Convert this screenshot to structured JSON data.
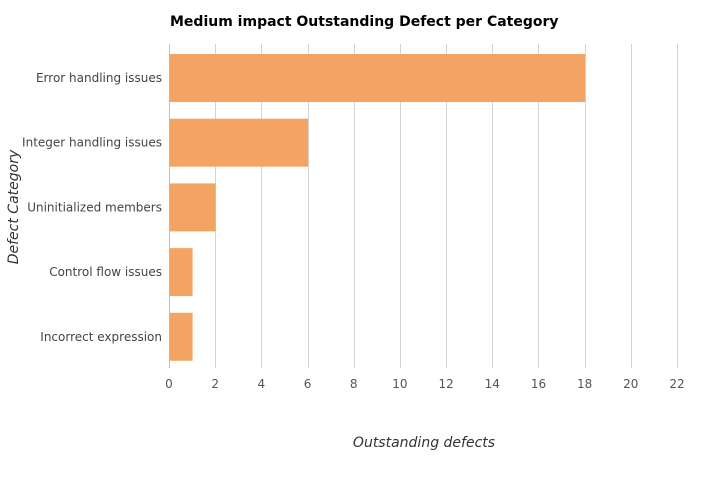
{
  "chart_data": {
    "type": "bar",
    "orientation": "horizontal",
    "title": "Medium impact Outstanding Defect per Category",
    "xlabel": "Outstanding defects",
    "ylabel": "Defect Category",
    "categories": [
      "Error handling issues",
      "Integer handling issues",
      "Uninitialized members",
      "Control flow issues",
      "Incorrect expression"
    ],
    "values": [
      18,
      6,
      2,
      1,
      1
    ],
    "xlim": [
      0,
      22
    ],
    "xticks": [
      0,
      2,
      4,
      6,
      8,
      10,
      12,
      14,
      16,
      18,
      20,
      22
    ],
    "grid": true,
    "legend": "none",
    "bar_color": "#f4a462"
  }
}
